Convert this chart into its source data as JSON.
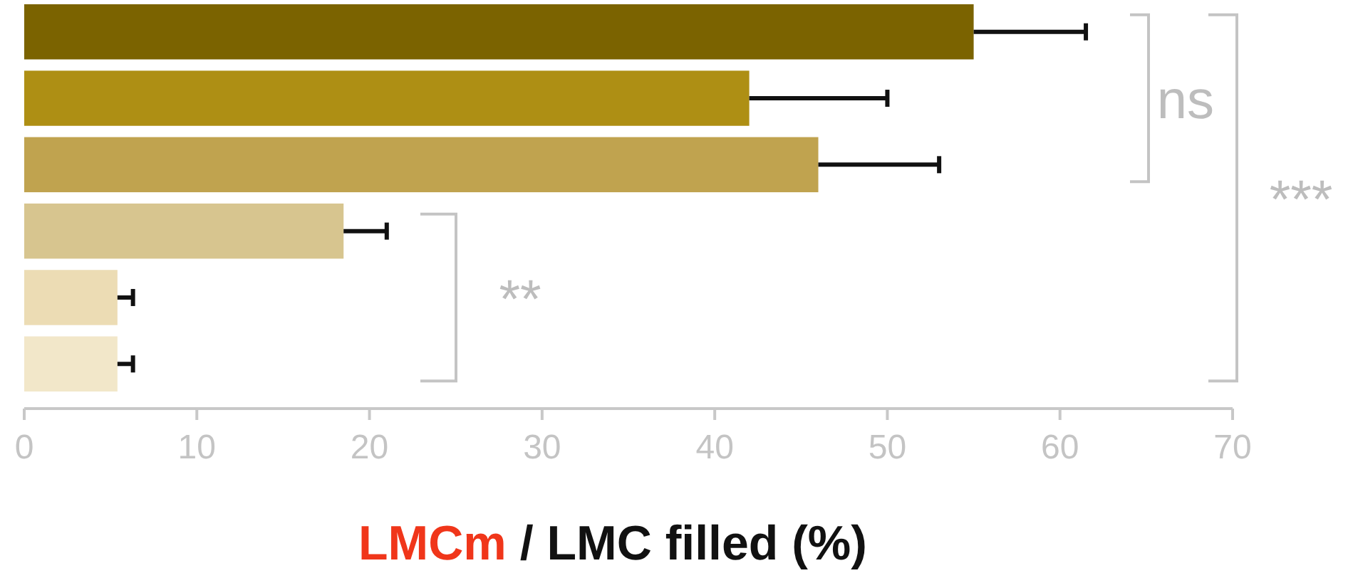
{
  "chart_data": {
    "type": "bar",
    "orientation": "horizontal",
    "xlabel": "LMCm / LMC filled (%)",
    "categories": [
      null,
      null,
      null,
      null,
      null,
      null
    ],
    "values": [
      55,
      42,
      46,
      18.5,
      5.4,
      5.4
    ],
    "errors": [
      6.5,
      8,
      7,
      2.5,
      0.9,
      0.9
    ],
    "colors": [
      "#7b6300",
      "#ae8f14",
      "#c0a34f",
      "#d7c58f",
      "#ecdcb4",
      "#f2e7c9"
    ],
    "xlim": [
      0,
      70
    ],
    "xticks": [
      0,
      10,
      20,
      30,
      40,
      50,
      60,
      70
    ],
    "grid": false,
    "annotations": [
      "ns",
      "**",
      "***"
    ]
  }
}
